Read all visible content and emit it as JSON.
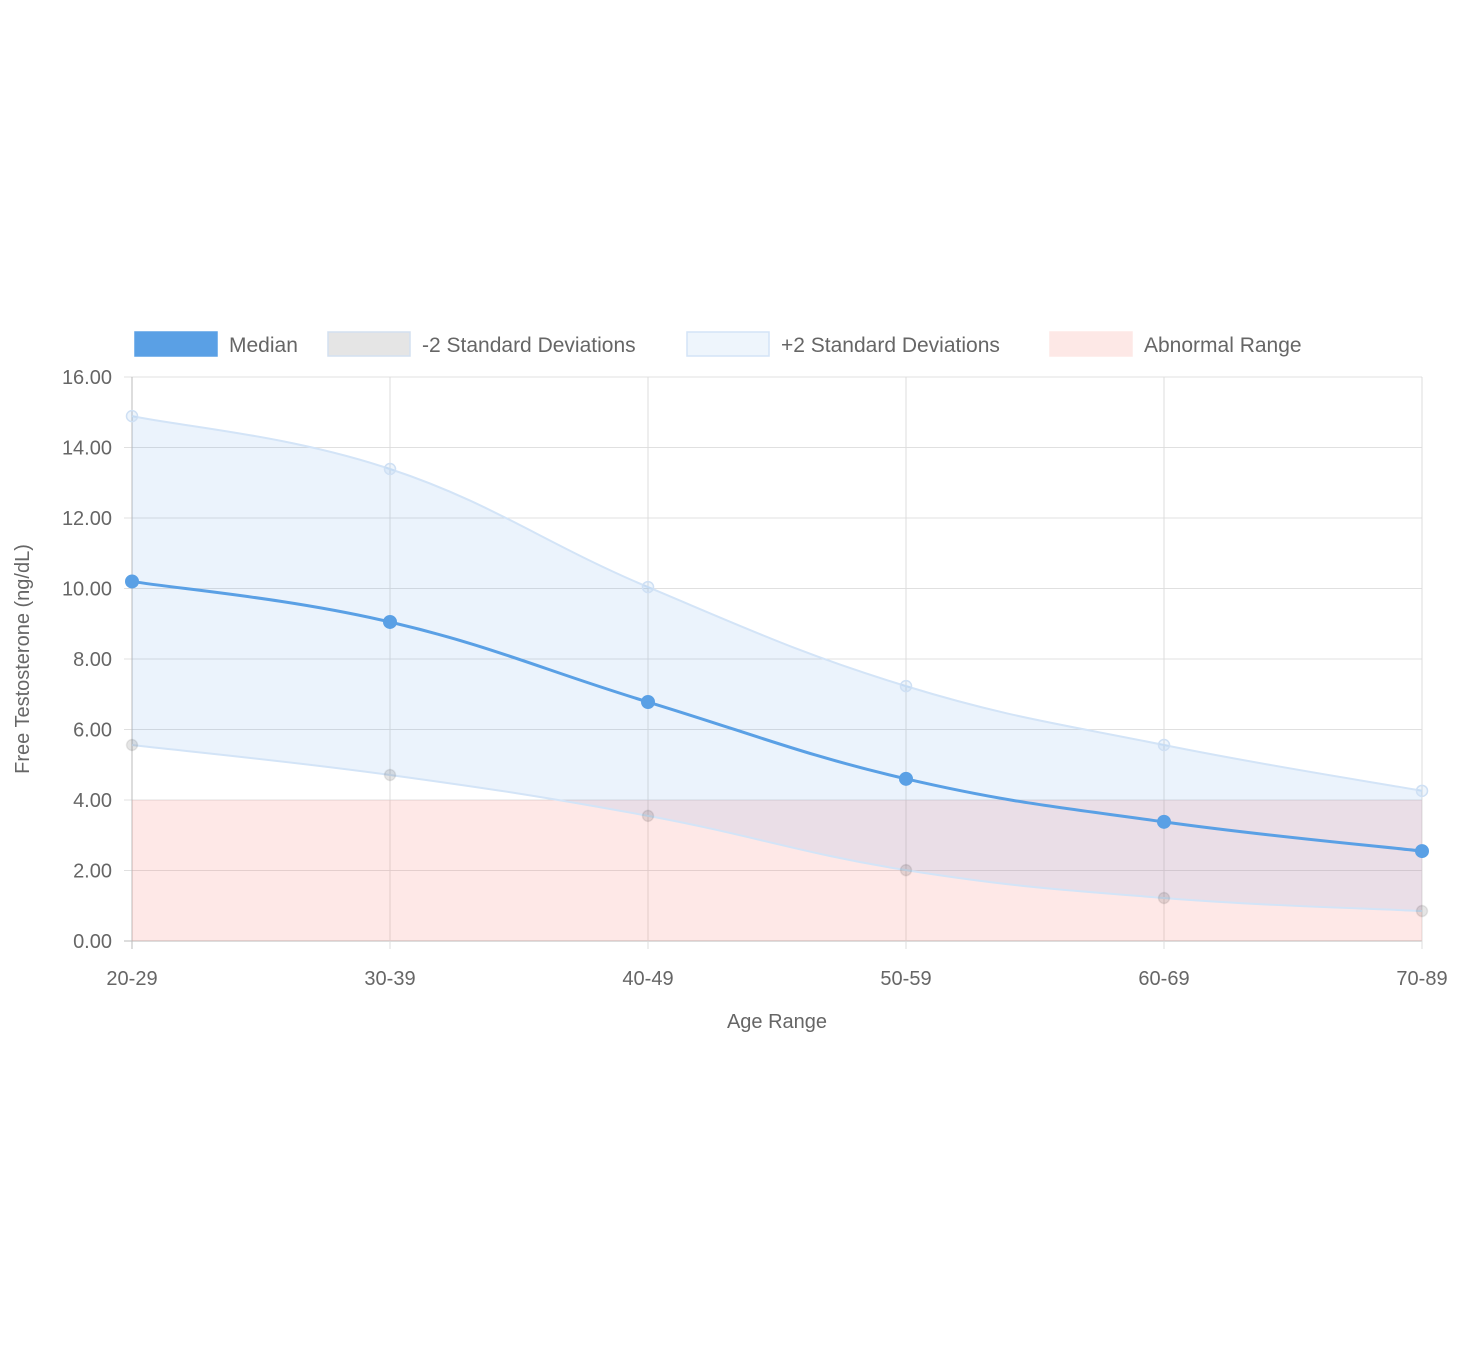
{
  "chart_data": {
    "type": "line",
    "title": "",
    "xlabel": "Age Range",
    "ylabel": "Free Testosterone (ng/dL)",
    "categories": [
      "20-29",
      "30-39",
      "40-49",
      "50-59",
      "60-69",
      "70-89"
    ],
    "ylim": [
      0,
      16
    ],
    "yticks": [
      "0.00",
      "2.00",
      "4.00",
      "6.00",
      "8.00",
      "10.00",
      "12.00",
      "14.00",
      "16.00"
    ],
    "grid": true,
    "legend_position": "top",
    "series": [
      {
        "name": "Median",
        "values": [
          10.2,
          9.05,
          6.78,
          4.6,
          3.38,
          2.55
        ],
        "color": "#5aa0e5"
      },
      {
        "name": "-2 Standard Deviations",
        "values": [
          5.56,
          4.71,
          3.55,
          2.01,
          1.22,
          0.85
        ],
        "color": "#e5e5e5"
      },
      {
        "name": "+2 Standard Deviations",
        "values": [
          14.89,
          13.39,
          10.04,
          7.23,
          5.56,
          4.26
        ],
        "color": "#eef5fc"
      },
      {
        "name": "Abnormal Range",
        "values": [
          4,
          4,
          4,
          4,
          4,
          4
        ],
        "color": "#fde8e6"
      }
    ]
  }
}
